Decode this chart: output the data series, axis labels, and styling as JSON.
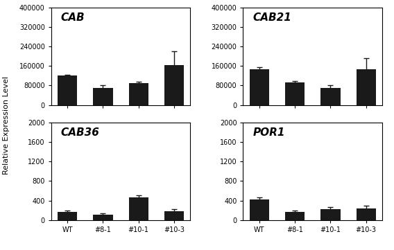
{
  "subplots": [
    {
      "title": "CAB",
      "values": [
        120000,
        70000,
        90000,
        165000
      ],
      "errors": [
        5000,
        12000,
        5000,
        55000
      ],
      "ylim": [
        0,
        400000
      ],
      "yticks": [
        0,
        80000,
        160000,
        240000,
        320000,
        400000
      ]
    },
    {
      "title": "CAB21",
      "values": [
        148000,
        93000,
        70000,
        147000
      ],
      "errors": [
        7000,
        5000,
        10000,
        45000
      ],
      "ylim": [
        0,
        400000
      ],
      "yticks": [
        0,
        80000,
        160000,
        240000,
        320000,
        400000
      ]
    },
    {
      "title": "CAB36",
      "values": [
        170,
        115,
        470,
        175
      ],
      "errors": [
        28,
        22,
        30,
        50
      ],
      "ylim": [
        0,
        2000
      ],
      "yticks": [
        0,
        400,
        800,
        1200,
        1600,
        2000
      ]
    },
    {
      "title": "POR1",
      "values": [
        420,
        170,
        220,
        240
      ],
      "errors": [
        45,
        25,
        50,
        60
      ],
      "ylim": [
        0,
        2000
      ],
      "yticks": [
        0,
        400,
        800,
        1200,
        1600,
        2000
      ]
    }
  ],
  "categories": [
    "WT",
    "#8-1",
    "#10-1",
    "#10-3"
  ],
  "bar_color": "#1a1a1a",
  "bar_width": 0.55,
  "ylabel": "Relative Expression Level",
  "ylabel_fontsize": 8,
  "title_fontsize": 11,
  "tick_fontsize": 7,
  "capsize": 3,
  "elinewidth": 1.0,
  "ecolor": "#1a1a1a"
}
